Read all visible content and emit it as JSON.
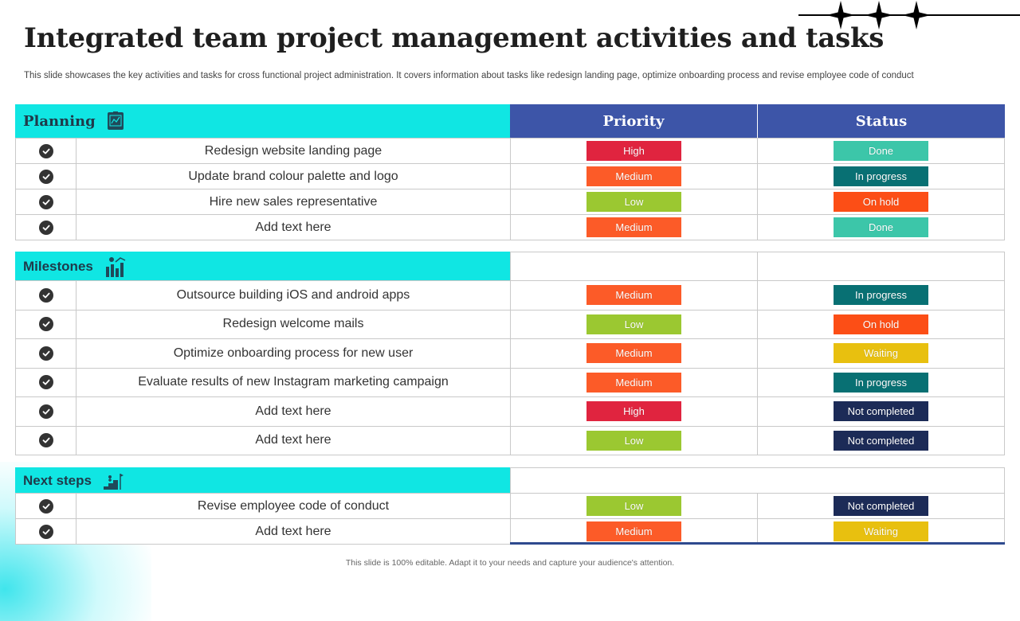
{
  "title": "Integrated team project management activities and tasks",
  "subtitle": "This slide showcases the key activities and tasks for cross functional project administration. It covers information about tasks like redesign landing page, optimize onboarding process and revise employee code of conduct",
  "footer": "This slide is 100% editable. Adapt it to your needs and capture your audience's attention.",
  "columns": {
    "priority": "Priority",
    "status": "Status"
  },
  "colors": {
    "High": "#e0243f",
    "Medium": "#fc5b28",
    "Low": "#9bc831",
    "Done": "#3cc6a9",
    "In progress": "#087073",
    "On hold": "#fc4e16",
    "Waiting": "#e8c00f",
    "Not completed": "#1c2b57",
    "section_header": "#10e6e3",
    "column_header": "#3d55a8"
  },
  "sections": [
    {
      "name": "Planning",
      "icon": "planning-board-icon",
      "rows": [
        {
          "task": "Redesign website landing page",
          "priority": "High",
          "status": "Done"
        },
        {
          "task": "Update brand colour palette and logo",
          "priority": "Medium",
          "status": "In progress"
        },
        {
          "task": "Hire new sales representative",
          "priority": "Low",
          "status": "On hold"
        },
        {
          "task": "Add text here",
          "priority": "Medium",
          "status": "Done"
        }
      ]
    },
    {
      "name": "Milestones",
      "icon": "growth-chart-icon",
      "rows": [
        {
          "task": "Outsource building iOS and android apps",
          "priority": "Medium",
          "status": "In progress"
        },
        {
          "task": "Redesign welcome mails",
          "priority": "Low",
          "status": "On hold"
        },
        {
          "task": "Optimize onboarding process for new user",
          "priority": "Medium",
          "status": "Waiting"
        },
        {
          "task": "Evaluate results of new Instagram marketing campaign",
          "priority": "Medium",
          "status": "In progress"
        },
        {
          "task": "Add text here",
          "priority": "High",
          "status": "Not completed"
        },
        {
          "task": "Add text here",
          "priority": "Low",
          "status": "Not completed"
        }
      ]
    },
    {
      "name": "Next steps",
      "icon": "climbing-steps-icon",
      "rows": [
        {
          "task": "Revise employee code of conduct",
          "priority": "Low",
          "status": "Not completed"
        },
        {
          "task": "Add text here",
          "priority": "Medium",
          "status": "Waiting"
        }
      ]
    }
  ]
}
